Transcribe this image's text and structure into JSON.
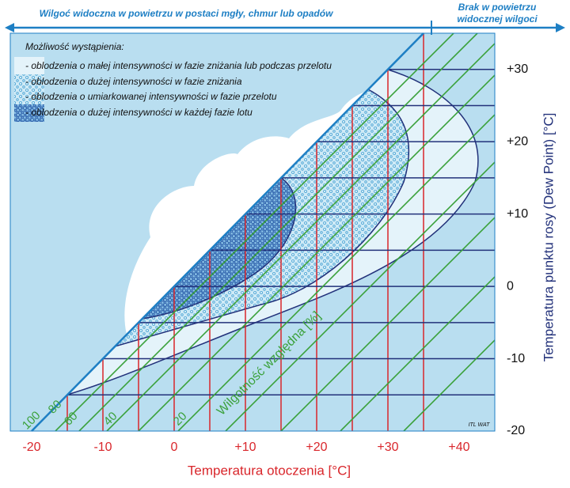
{
  "chart_data": {
    "type": "icing-diagram",
    "top_left_label": "Wilgoć widoczna w powietrzu w postaci mgły, chmur lub opadów",
    "top_right_label": [
      "Brak w powietrzu",
      "widocznej wilgoci"
    ],
    "legend_title": "Możliwość wystąpienia:",
    "legend": [
      {
        "name": "- oblodzenia o małej intensywności w fazie zniżania lub podczas przelotu"
      },
      {
        "name": "- oblodzenia o dużej intensywności w fazie zniżania"
      },
      {
        "name": "- oblodzenia o umiarkowanej intensywności w fazie przelotu"
      },
      {
        "name": "- oblodzenia o dużej intensywności w każdej fazie lotu"
      }
    ],
    "xlabel": "Temperatura otoczenia [°C]",
    "ylabel": "Temperatura punktu rosy (Dew Point) [°C]",
    "rh_label": "Wilgotność względna [%]",
    "rh_values": [
      100,
      80,
      60,
      40,
      20
    ],
    "credit": "ITL WAT",
    "xlim": [
      -23,
      45
    ],
    "ylim": [
      -20,
      35
    ],
    "xticks": [
      -20,
      -10,
      0,
      {
        "value": 10,
        "label": "+10"
      },
      {
        "value": 20,
        "label": "+20"
      },
      {
        "value": 30,
        "label": "+30"
      },
      {
        "value": 40,
        "label": "+40"
      }
    ],
    "yticks": [
      -20,
      -10,
      0,
      {
        "value": 10,
        "label": "+10"
      },
      {
        "value": 20,
        "label": "+20"
      },
      {
        "value": 30,
        "label": "+30"
      }
    ],
    "xgrid": [
      -15,
      -10,
      -5,
      0,
      5,
      10,
      15,
      20,
      25,
      30,
      35
    ],
    "ygrid": [
      -15,
      -10,
      -5,
      0,
      5,
      10,
      15,
      20,
      25,
      30
    ],
    "xgrid_color": "#d9262b",
    "ygrid_color": "#22317a"
  }
}
